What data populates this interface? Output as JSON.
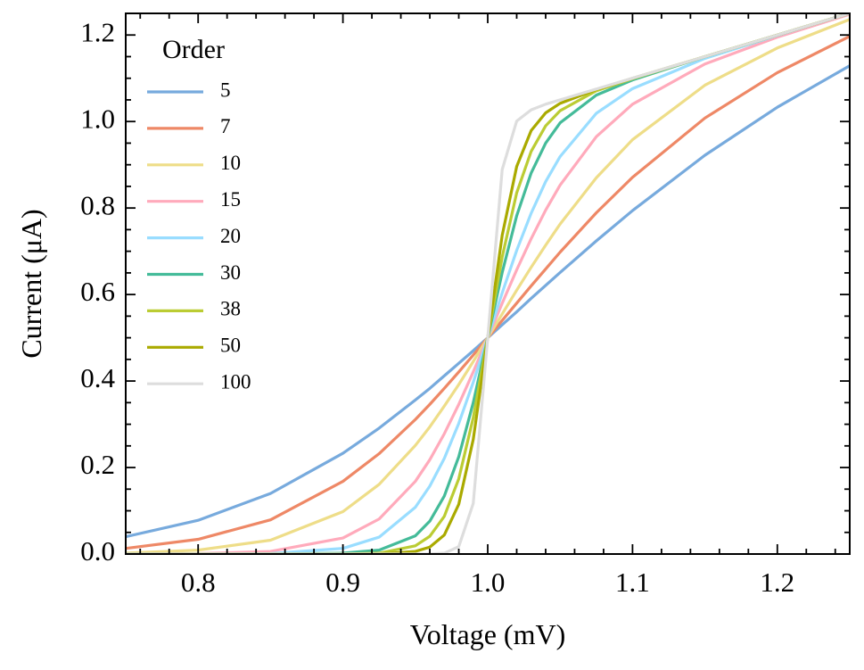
{
  "chart_data": {
    "type": "line",
    "xlabel": "Voltage (mV)",
    "ylabel": "Current (μA)",
    "legend_title": "Order",
    "legend_loc": "upper left",
    "x": [
      0.75,
      0.8,
      0.85,
      0.9,
      0.925,
      0.95,
      0.96,
      0.97,
      0.98,
      0.99,
      1.0,
      1.01,
      1.02,
      1.03,
      1.04,
      1.05,
      1.075,
      1.1,
      1.15,
      1.2,
      1.25
    ],
    "series": [
      {
        "name": "5",
        "color": "#77aadd",
        "values": [
          0.04,
          0.078,
          0.14,
          0.233,
          0.291,
          0.356,
          0.383,
          0.412,
          0.441,
          0.47,
          0.5,
          0.53,
          0.56,
          0.591,
          0.621,
          0.651,
          0.724,
          0.794,
          0.922,
          1.033,
          1.129
        ]
      },
      {
        "name": "7",
        "color": "#ee8866",
        "values": [
          0.013,
          0.034,
          0.079,
          0.168,
          0.232,
          0.311,
          0.346,
          0.383,
          0.421,
          0.46,
          0.5,
          0.54,
          0.58,
          0.62,
          0.659,
          0.698,
          0.789,
          0.871,
          1.008,
          1.113,
          1.197
        ]
      },
      {
        "name": "10",
        "color": "#eedd88",
        "values": [
          0.002,
          0.009,
          0.032,
          0.098,
          0.161,
          0.251,
          0.294,
          0.342,
          0.392,
          0.445,
          0.5,
          0.555,
          0.61,
          0.663,
          0.714,
          0.763,
          0.87,
          0.958,
          1.084,
          1.17,
          1.236
        ]
      },
      {
        "name": "15",
        "color": "#ffaabb",
        "values": [
          0,
          0.001,
          0.006,
          0.037,
          0.081,
          0.168,
          0.218,
          0.278,
          0.346,
          0.421,
          0.5,
          0.58,
          0.657,
          0.729,
          0.795,
          0.853,
          0.965,
          1.04,
          1.133,
          1.195,
          1.248
        ]
      },
      {
        "name": "20",
        "color": "#99ddff",
        "values": [
          0,
          0,
          0.001,
          0.013,
          0.039,
          0.108,
          0.157,
          0.221,
          0.302,
          0.397,
          0.5,
          0.604,
          0.702,
          0.788,
          0.861,
          0.919,
          1.019,
          1.076,
          1.146,
          1.199,
          1.25
        ]
      },
      {
        "name": "30",
        "color": "#44bb99",
        "values": [
          0,
          0,
          0,
          0.002,
          0.009,
          0.042,
          0.076,
          0.134,
          0.225,
          0.35,
          0.5,
          0.651,
          0.782,
          0.881,
          0.95,
          0.997,
          1.061,
          1.096,
          1.15,
          1.2,
          1.25
        ]
      },
      {
        "name": "38",
        "color": "#bbcc33",
        "values": [
          0,
          0,
          0,
          0,
          0.002,
          0.019,
          0.041,
          0.087,
          0.174,
          0.315,
          0.5,
          0.687,
          0.835,
          0.931,
          0.99,
          1.025,
          1.071,
          1.099,
          1.15,
          1.2,
          1.25
        ]
      },
      {
        "name": "50",
        "color": "#aaaa00",
        "values": [
          0,
          0,
          0,
          0,
          0,
          0.006,
          0.016,
          0.044,
          0.115,
          0.265,
          0.5,
          0.737,
          0.896,
          0.979,
          1.02,
          1.042,
          1.074,
          1.1,
          1.15,
          1.2,
          1.25
        ]
      },
      {
        "name": "100",
        "color": "#dddddd",
        "values": [
          0,
          0,
          0,
          0,
          0,
          0,
          0,
          0.002,
          0.017,
          0.117,
          0.5,
          0.889,
          1.001,
          1.027,
          1.04,
          1.05,
          1.075,
          1.1,
          1.15,
          1.2,
          1.25
        ]
      }
    ],
    "xlim": [
      0.75,
      1.25
    ],
    "xticks": [
      0.8,
      0.9,
      {
        "value": 1,
        "label": "1.0"
      },
      1.1,
      1.2
    ],
    "xminorticks": [
      0.76,
      0.78,
      0.82,
      0.84,
      0.86,
      0.88,
      0.92,
      0.94,
      0.96,
      0.98,
      1.02,
      1.04,
      1.06,
      1.08,
      1.12,
      1.14,
      1.16,
      1.18,
      1.22,
      1.24
    ],
    "ylim": [
      0,
      1.25
    ],
    "yticks": [
      {
        "value": 0,
        "label": "0.0"
      },
      0.2,
      0.4,
      0.6,
      0.8,
      {
        "value": 1,
        "label": "1.0"
      },
      1.2
    ],
    "yminorticks": [
      0.05,
      0.1,
      0.15,
      0.25,
      0.3,
      0.35,
      0.45,
      0.5,
      0.55,
      0.65,
      0.7,
      0.75,
      0.85,
      0.9,
      0.95,
      1.05,
      1.1,
      1.15,
      1.25
    ],
    "grid": false
  }
}
